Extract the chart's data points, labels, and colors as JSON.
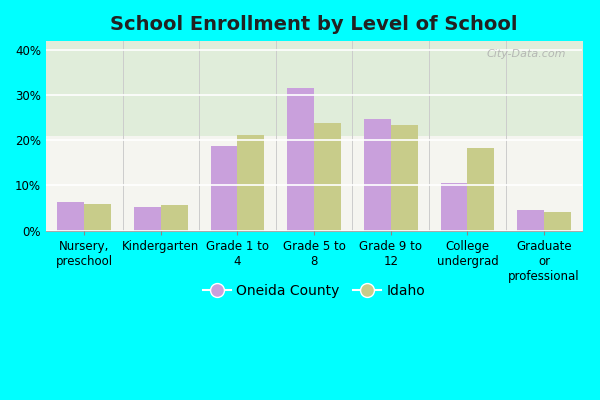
{
  "title": "School Enrollment by Level of School",
  "categories": [
    "Nursery,\npreschool",
    "Kindergarten",
    "Grade 1 to\n4",
    "Grade 5 to\n8",
    "Grade 9 to\n12",
    "College\nundergrad",
    "Graduate\nor\nprofessional"
  ],
  "oneida_values": [
    6.3,
    5.2,
    18.8,
    31.5,
    24.8,
    10.6,
    4.5
  ],
  "idaho_values": [
    5.8,
    5.7,
    21.1,
    23.9,
    23.3,
    18.3,
    4.1
  ],
  "oneida_color": "#c9a0dc",
  "idaho_color": "#c8cc8a",
  "bar_width": 0.35,
  "ylim": [
    0,
    42
  ],
  "yticks": [
    0,
    10,
    20,
    30,
    40
  ],
  "ytick_labels": [
    "0%",
    "10%",
    "20%",
    "30%",
    "40%"
  ],
  "legend_labels": [
    "Oneida County",
    "Idaho"
  ],
  "outer_bg_color": "#00ffff",
  "plot_bg_top": "#f5f5f0",
  "plot_bg_bottom": "#e0edda",
  "title_fontsize": 14,
  "tick_fontsize": 8.5,
  "legend_fontsize": 10,
  "watermark": "City-Data.com"
}
